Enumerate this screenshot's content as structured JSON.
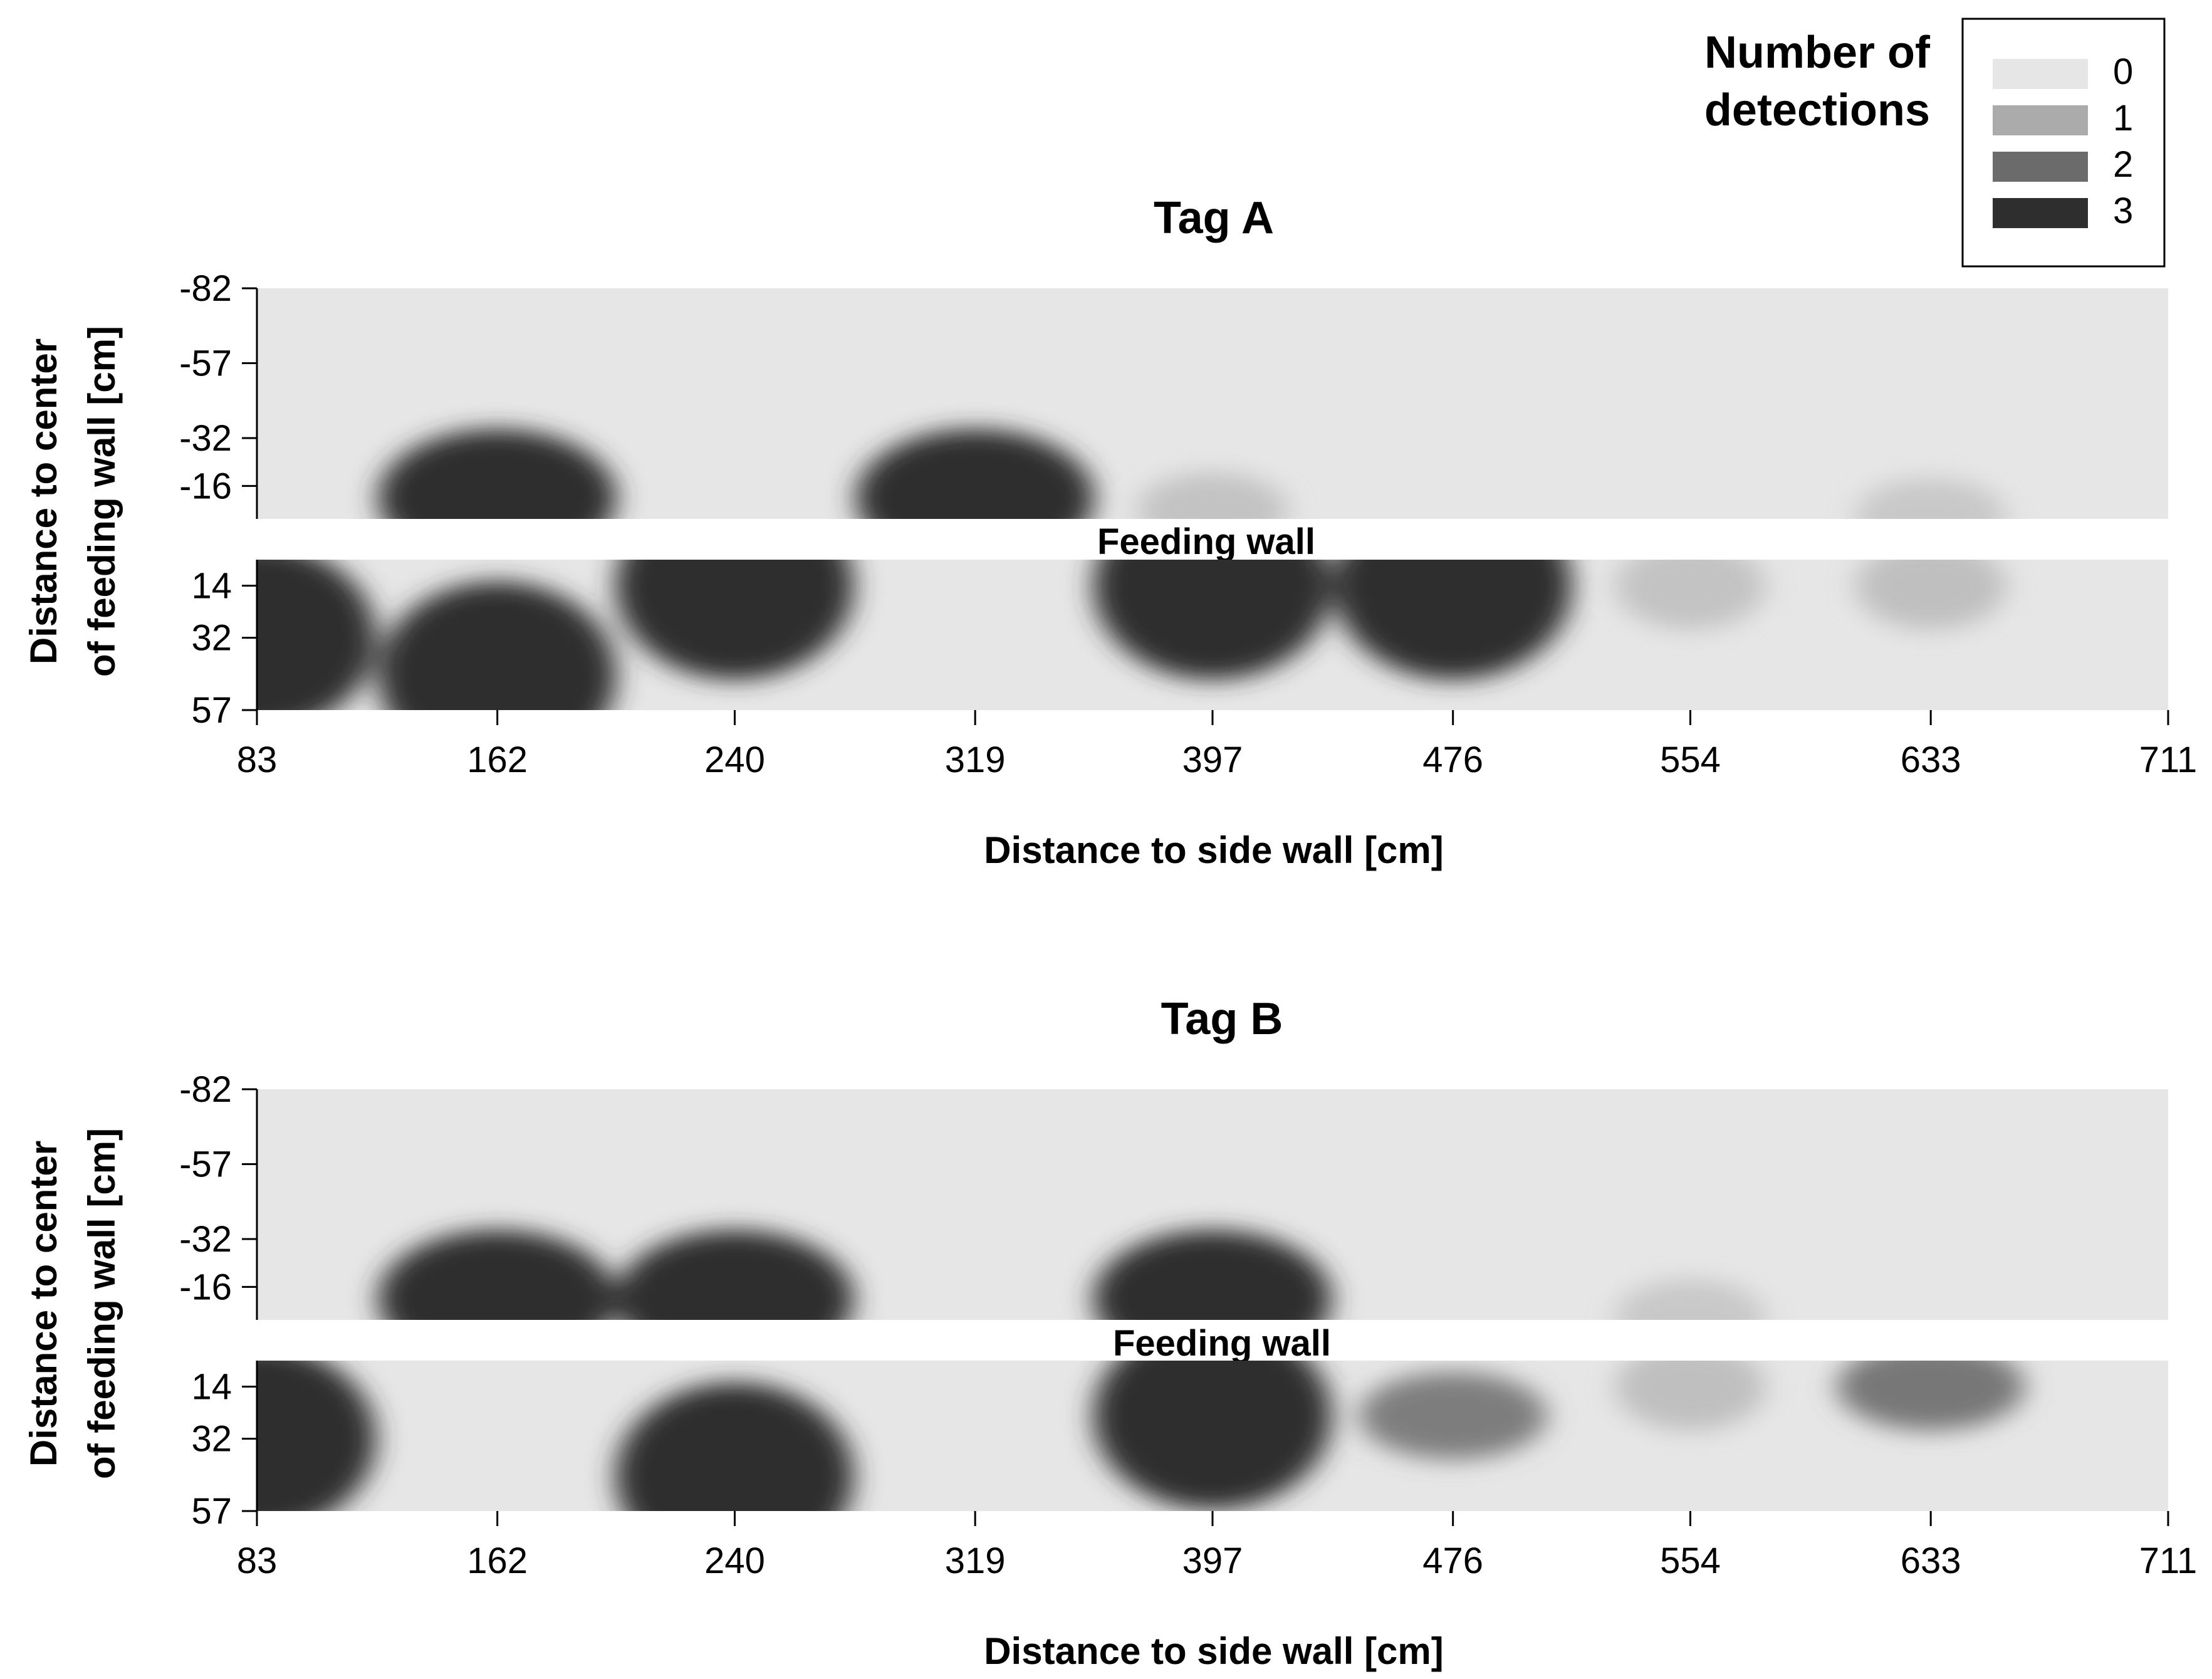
{
  "legend": {
    "title_line1": "Number of",
    "title_line2": "detections",
    "levels": [
      {
        "label": "0",
        "color": "#e6e6e6"
      },
      {
        "label": "1",
        "color": "#ababab"
      },
      {
        "label": "2",
        "color": "#6b6b6b"
      },
      {
        "label": "3",
        "color": "#2e2e2e"
      }
    ]
  },
  "chart_data": [
    {
      "type": "heatmap",
      "title": "Tag A",
      "xlabel": "Distance to side wall [cm]",
      "ylabel_line1": "Distance to center",
      "ylabel_line2": "of feeding wall [cm]",
      "divider_label": "Feeding wall",
      "x_ticks": [
        83,
        162,
        240,
        319,
        397,
        476,
        554,
        633,
        711
      ],
      "y_ticks_top": [
        -82,
        -57,
        -32,
        -16
      ],
      "y_ticks_bottom": [
        14,
        32,
        57
      ],
      "xlim": [
        83,
        711
      ],
      "colorscale": [
        "#e6e6e6",
        "#ababab",
        "#6b6b6b",
        "#2e2e2e"
      ],
      "hotspots": [
        {
          "region": "top",
          "x": 162,
          "y": -12,
          "value": 3
        },
        {
          "region": "top",
          "x": 319,
          "y": -12,
          "value": 3
        },
        {
          "region": "top",
          "x": 397,
          "y": -8,
          "value": 1
        },
        {
          "region": "top",
          "x": 633,
          "y": -6,
          "value": 0.6
        },
        {
          "region": "bottom",
          "x": 83,
          "y": 32,
          "value": 3
        },
        {
          "region": "bottom",
          "x": 162,
          "y": 45,
          "value": 3
        },
        {
          "region": "bottom",
          "x": 240,
          "y": 14,
          "value": 3
        },
        {
          "region": "bottom",
          "x": 397,
          "y": 14,
          "value": 3
        },
        {
          "region": "bottom",
          "x": 476,
          "y": 14,
          "value": 3
        },
        {
          "region": "bottom",
          "x": 554,
          "y": 14,
          "value": 1
        },
        {
          "region": "bottom",
          "x": 633,
          "y": 14,
          "value": 1.2
        }
      ]
    },
    {
      "type": "heatmap",
      "title": "Tag B",
      "xlabel": "Distance to side wall [cm]",
      "ylabel_line1": "Distance to center",
      "ylabel_line2": "of feeding wall [cm]",
      "divider_label": "Feeding wall",
      "x_ticks": [
        83,
        162,
        240,
        319,
        397,
        476,
        554,
        633,
        711
      ],
      "y_ticks_top": [
        -82,
        -57,
        -32,
        -16
      ],
      "y_ticks_bottom": [
        14,
        32,
        57
      ],
      "xlim": [
        83,
        711
      ],
      "colorscale": [
        "#e6e6e6",
        "#ababab",
        "#6b6b6b",
        "#2e2e2e"
      ],
      "hotspots": [
        {
          "region": "top",
          "x": 162,
          "y": -12,
          "value": 3
        },
        {
          "region": "top",
          "x": 240,
          "y": -12,
          "value": 3
        },
        {
          "region": "top",
          "x": 397,
          "y": -12,
          "value": 3
        },
        {
          "region": "top",
          "x": 554,
          "y": -6,
          "value": 0.6
        },
        {
          "region": "bottom",
          "x": 83,
          "y": 32,
          "value": 3
        },
        {
          "region": "bottom",
          "x": 240,
          "y": 45,
          "value": 3
        },
        {
          "region": "bottom",
          "x": 397,
          "y": 24,
          "value": 3
        },
        {
          "region": "bottom",
          "x": 476,
          "y": 24,
          "value": 2
        },
        {
          "region": "bottom",
          "x": 554,
          "y": 14,
          "value": 1.2
        },
        {
          "region": "bottom",
          "x": 633,
          "y": 14,
          "value": 2.2
        }
      ]
    }
  ]
}
